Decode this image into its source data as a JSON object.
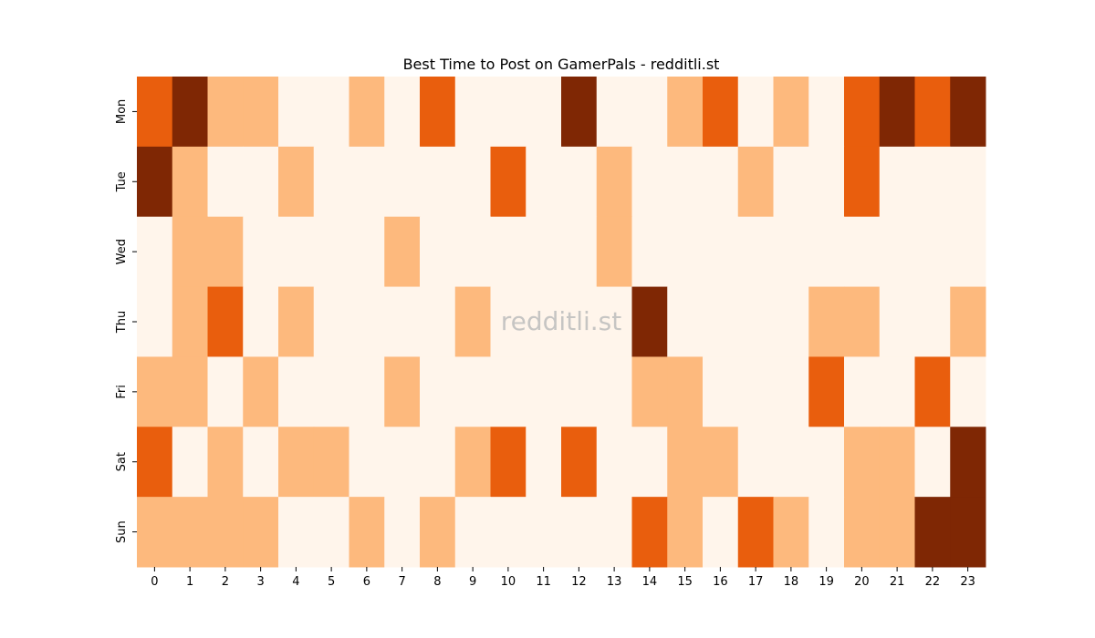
{
  "chart_data": {
    "type": "heatmap",
    "title": "Best Time to Post on GamerPals - redditli.st",
    "watermark": "redditli.st",
    "x_categories": [
      "0",
      "1",
      "2",
      "3",
      "4",
      "5",
      "6",
      "7",
      "8",
      "9",
      "10",
      "11",
      "12",
      "13",
      "14",
      "15",
      "16",
      "17",
      "18",
      "19",
      "20",
      "21",
      "22",
      "23"
    ],
    "y_categories": [
      "Mon",
      "Tue",
      "Wed",
      "Thu",
      "Fri",
      "Sat",
      "Sun"
    ],
    "levels": [
      [
        2,
        3,
        1,
        1,
        0,
        0,
        1,
        0,
        2,
        0,
        0,
        0,
        3,
        0,
        0,
        1,
        2,
        0,
        1,
        0,
        2,
        3,
        2,
        3
      ],
      [
        3,
        1,
        0,
        0,
        1,
        0,
        0,
        0,
        0,
        0,
        2,
        0,
        0,
        1,
        0,
        0,
        0,
        1,
        0,
        0,
        2,
        0,
        0,
        0
      ],
      [
        0,
        1,
        1,
        0,
        0,
        0,
        0,
        1,
        0,
        0,
        0,
        0,
        0,
        1,
        0,
        0,
        0,
        0,
        0,
        0,
        0,
        0,
        0,
        0
      ],
      [
        0,
        1,
        2,
        0,
        1,
        0,
        0,
        0,
        0,
        1,
        0,
        0,
        0,
        0,
        3,
        0,
        0,
        0,
        0,
        1,
        1,
        0,
        0,
        1
      ],
      [
        1,
        1,
        0,
        1,
        0,
        0,
        0,
        1,
        0,
        0,
        0,
        0,
        0,
        0,
        1,
        1,
        0,
        0,
        0,
        2,
        0,
        0,
        2,
        0
      ],
      [
        2,
        0,
        1,
        0,
        1,
        1,
        0,
        0,
        0,
        1,
        2,
        0,
        2,
        0,
        0,
        1,
        1,
        0,
        0,
        0,
        1,
        1,
        0,
        3
      ],
      [
        1,
        1,
        1,
        1,
        0,
        0,
        1,
        0,
        1,
        0,
        0,
        0,
        0,
        0,
        2,
        1,
        0,
        2,
        1,
        0,
        1,
        1,
        3,
        3
      ]
    ],
    "colors": [
      "#fff5eb",
      "#fdb97d",
      "#e95e0d",
      "#7f2704"
    ],
    "colormap": "Oranges",
    "grid": false,
    "legend": "none"
  }
}
